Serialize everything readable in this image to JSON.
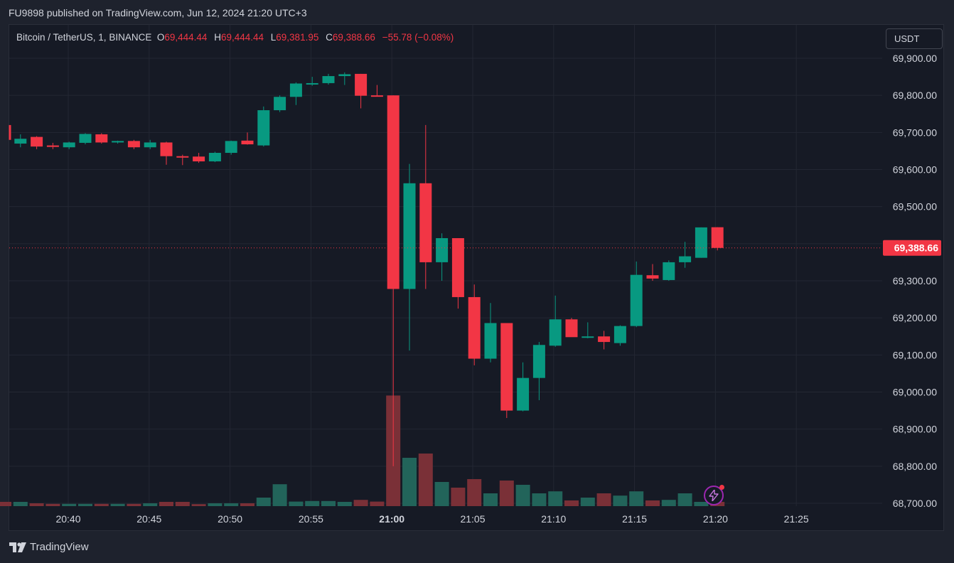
{
  "header": {
    "publish_text": "FU9898 published on TradingView.com, Jun 12, 2024 21:20 UTC+3"
  },
  "legend": {
    "symbol": "Bitcoin / TetherUS, 1, BINANCE",
    "o_label": "O",
    "o_value": "69,444.44",
    "h_label": "H",
    "h_value": "69,444.44",
    "l_label": "L",
    "l_value": "69,381.95",
    "c_label": "C",
    "c_value": "69,388.66",
    "change": "−55.78 (−0.08%)"
  },
  "currency_button": {
    "label": "USDT"
  },
  "price_label": {
    "text": "69,388.66",
    "color": "#f23645"
  },
  "footer": {
    "brand": "TradingView"
  },
  "colors": {
    "up": "#089981",
    "down": "#f23645",
    "up_volume": "#22645a",
    "down_volume": "#7a3037",
    "grid": "#232733",
    "axis_text": "#d1d4dc"
  },
  "chart_data": {
    "type": "candlestick",
    "title": "Bitcoin / TetherUS, 1, BINANCE",
    "ylim": [
      68700,
      69940
    ],
    "y_ticks": [
      69900,
      69800,
      69700,
      69600,
      69500,
      69400,
      69300,
      69200,
      69100,
      69000,
      68900,
      68800,
      68700
    ],
    "y_tick_labels": [
      "69,900.00",
      "69,800.00",
      "69,700.00",
      "69,600.00",
      "69,500.00",
      "",
      "69,300.00",
      "69,200.00",
      "69,100.00",
      "69,000.00",
      "68,900.00",
      "68,800.00",
      "68,700.00"
    ],
    "x_ticks": [
      "20:40",
      "20:45",
      "20:50",
      "20:55",
      "21:00",
      "21:05",
      "21:10",
      "21:15",
      "21:20",
      "21:25"
    ],
    "last_price": 69388.66,
    "candles": [
      {
        "t": "20:36",
        "o": 69700,
        "h": 69720,
        "l": 69680,
        "c": 69680
      },
      {
        "t": "20:37",
        "o": 69670,
        "h": 69695,
        "l": 69660,
        "c": 69683
      },
      {
        "t": "20:38",
        "o": 69688,
        "h": 69690,
        "l": 69655,
        "c": 69662
      },
      {
        "t": "20:39",
        "o": 69665,
        "h": 69672,
        "l": 69655,
        "c": 69661
      },
      {
        "t": "20:40",
        "o": 69660,
        "h": 69675,
        "l": 69655,
        "c": 69673
      },
      {
        "t": "20:41",
        "o": 69672,
        "h": 69698,
        "l": 69668,
        "c": 69696
      },
      {
        "t": "20:42",
        "o": 69695,
        "h": 69698,
        "l": 69670,
        "c": 69673
      },
      {
        "t": "20:43",
        "o": 69673,
        "h": 69678,
        "l": 69670,
        "c": 69677
      },
      {
        "t": "20:44",
        "o": 69677,
        "h": 69680,
        "l": 69655,
        "c": 69660
      },
      {
        "t": "20:45",
        "o": 69660,
        "h": 69680,
        "l": 69655,
        "c": 69673
      },
      {
        "t": "20:46",
        "o": 69673,
        "h": 69675,
        "l": 69613,
        "c": 69636
      },
      {
        "t": "20:47",
        "o": 69636,
        "h": 69640,
        "l": 69612,
        "c": 69634
      },
      {
        "t": "20:48",
        "o": 69635,
        "h": 69645,
        "l": 69618,
        "c": 69622
      },
      {
        "t": "20:49",
        "o": 69622,
        "h": 69648,
        "l": 69620,
        "c": 69645
      },
      {
        "t": "20:50",
        "o": 69645,
        "h": 69678,
        "l": 69640,
        "c": 69677
      },
      {
        "t": "20:51",
        "o": 69678,
        "h": 69700,
        "l": 69667,
        "c": 69668
      },
      {
        "t": "20:52",
        "o": 69665,
        "h": 69770,
        "l": 69662,
        "c": 69760
      },
      {
        "t": "20:53",
        "o": 69760,
        "h": 69800,
        "l": 69755,
        "c": 69796
      },
      {
        "t": "20:54",
        "o": 69796,
        "h": 69835,
        "l": 69774,
        "c": 69832
      },
      {
        "t": "20:55",
        "o": 69830,
        "h": 69850,
        "l": 69826,
        "c": 69833
      },
      {
        "t": "20:56",
        "o": 69833,
        "h": 69858,
        "l": 69829,
        "c": 69852
      },
      {
        "t": "20:57",
        "o": 69852,
        "h": 69862,
        "l": 69828,
        "c": 69857
      },
      {
        "t": "20:58",
        "o": 69858,
        "h": 69858,
        "l": 69765,
        "c": 69799
      },
      {
        "t": "20:59",
        "o": 69800,
        "h": 69828,
        "l": 69797,
        "c": 69798
      },
      {
        "t": "21:00",
        "o": 69800,
        "h": 69800,
        "l": 68800,
        "c": 69278
      },
      {
        "t": "21:01",
        "o": 69278,
        "h": 69615,
        "l": 69112,
        "c": 69563
      },
      {
        "t": "21:02",
        "o": 69563,
        "h": 69720,
        "l": 69278,
        "c": 69350
      },
      {
        "t": "21:03",
        "o": 69350,
        "h": 69428,
        "l": 69300,
        "c": 69415
      },
      {
        "t": "21:04",
        "o": 69415,
        "h": 69415,
        "l": 69225,
        "c": 69256
      },
      {
        "t": "21:05",
        "o": 69256,
        "h": 69290,
        "l": 69072,
        "c": 69090
      },
      {
        "t": "21:06",
        "o": 69090,
        "h": 69240,
        "l": 69080,
        "c": 69186
      },
      {
        "t": "21:07",
        "o": 69186,
        "h": 69186,
        "l": 68930,
        "c": 68950
      },
      {
        "t": "21:08",
        "o": 68950,
        "h": 69080,
        "l": 68948,
        "c": 69038
      },
      {
        "t": "21:09",
        "o": 69038,
        "h": 69135,
        "l": 68978,
        "c": 69127
      },
      {
        "t": "21:10",
        "o": 69125,
        "h": 69260,
        "l": 69122,
        "c": 69196
      },
      {
        "t": "21:11",
        "o": 69196,
        "h": 69200,
        "l": 69150,
        "c": 69148
      },
      {
        "t": "21:12",
        "o": 69148,
        "h": 69188,
        "l": 69145,
        "c": 69150
      },
      {
        "t": "21:13",
        "o": 69150,
        "h": 69165,
        "l": 69115,
        "c": 69135
      },
      {
        "t": "21:14",
        "o": 69132,
        "h": 69180,
        "l": 69125,
        "c": 69178
      },
      {
        "t": "21:15",
        "o": 69178,
        "h": 69352,
        "l": 69175,
        "c": 69316
      },
      {
        "t": "21:16",
        "o": 69315,
        "h": 69345,
        "l": 69300,
        "c": 69306
      },
      {
        "t": "21:17",
        "o": 69302,
        "h": 69355,
        "l": 69300,
        "c": 69350
      },
      {
        "t": "21:18",
        "o": 69350,
        "h": 69405,
        "l": 69335,
        "c": 69366
      },
      {
        "t": "21:19",
        "o": 69362,
        "h": 69444,
        "l": 69362,
        "c": 69444
      },
      {
        "t": "21:20",
        "o": 69444.44,
        "h": 69444.44,
        "l": 69381.95,
        "c": 69388.66
      }
    ],
    "volume_relative": [
      0.15,
      0.15,
      0.1,
      0.08,
      0.08,
      0.08,
      0.08,
      0.08,
      0.08,
      0.1,
      0.15,
      0.15,
      0.07,
      0.1,
      0.1,
      0.1,
      0.3,
      0.77,
      0.16,
      0.18,
      0.18,
      0.15,
      0.22,
      0.16,
      3.89,
      1.7,
      1.85,
      0.85,
      0.65,
      0.95,
      0.45,
      0.9,
      0.75,
      0.45,
      0.52,
      0.2,
      0.3,
      0.45,
      0.37,
      0.52,
      0.2,
      0.22,
      0.45,
      0.15,
      0.15
    ]
  }
}
